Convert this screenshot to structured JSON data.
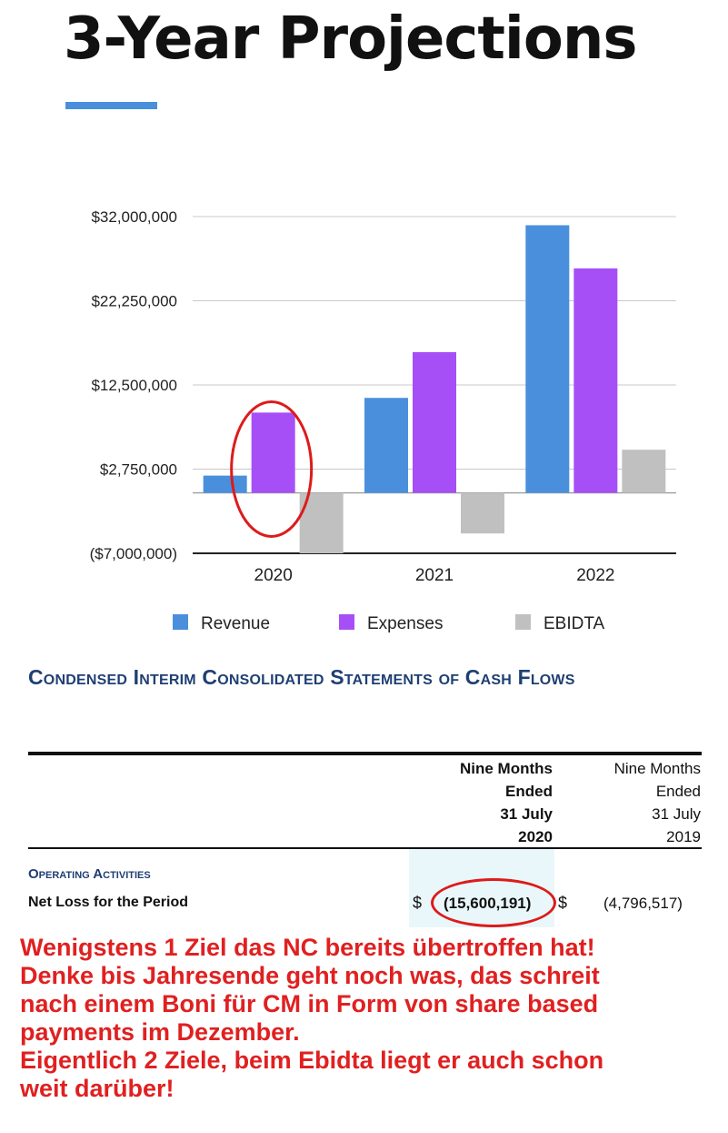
{
  "page": {
    "title": "3-Year Projections",
    "accent_color": "#4a8fdc"
  },
  "chart_data": {
    "type": "bar",
    "title": "3-Year Projections",
    "categories": [
      "2020",
      "2021",
      "2022"
    ],
    "series": [
      {
        "name": "Revenue",
        "color": "#4a8fdc",
        "values": [
          2000000,
          11000000,
          31000000
        ]
      },
      {
        "name": "Expenses",
        "color": "#a64ff7",
        "values": [
          9300000,
          16300000,
          26000000
        ]
      },
      {
        "name": "EBIDTA",
        "color": "#c0c0c0",
        "values": [
          -7000000,
          -4700000,
          5000000
        ]
      }
    ],
    "yticks": [
      -7000000,
      2750000,
      12500000,
      22250000,
      32000000
    ],
    "ytick_labels": [
      "($7,000,000)",
      "$2,750,000",
      "$12,500,000",
      "$22,250,000",
      "$32,000,000"
    ],
    "ylim": [
      -7000000,
      32000000
    ],
    "grid": true,
    "legend": "bottom",
    "xlabel": "",
    "ylabel": "",
    "annotation": {
      "type": "circle",
      "category": "2020",
      "series": "Expenses",
      "color": "#dd1b1b"
    }
  },
  "statement": {
    "heading": "Condensed Interim Consolidated Statements of Cash Flows",
    "columns": [
      {
        "lines": [
          "Nine Months",
          "Ended",
          "31 July",
          "2020"
        ]
      },
      {
        "lines": [
          "Nine Months",
          "Ended",
          "31 July",
          "2019"
        ]
      }
    ],
    "section": "Operating Activities",
    "row": {
      "label": "Net Loss for the Period",
      "currency": "$",
      "value_2020": "(15,600,191)",
      "value_2019": "(4,796,517)"
    }
  },
  "note": {
    "lines": [
      "Wenigstens 1 Ziel das NC bereits übertroffen hat!",
      "Denke bis Jahresende geht noch was, das schreit",
      "nach einem Boni für CM in Form von share based",
      "payments im Dezember.",
      "Eigentlich 2 Ziele, beim Ebidta liegt er auch schon",
      "weit darüber!"
    ]
  }
}
